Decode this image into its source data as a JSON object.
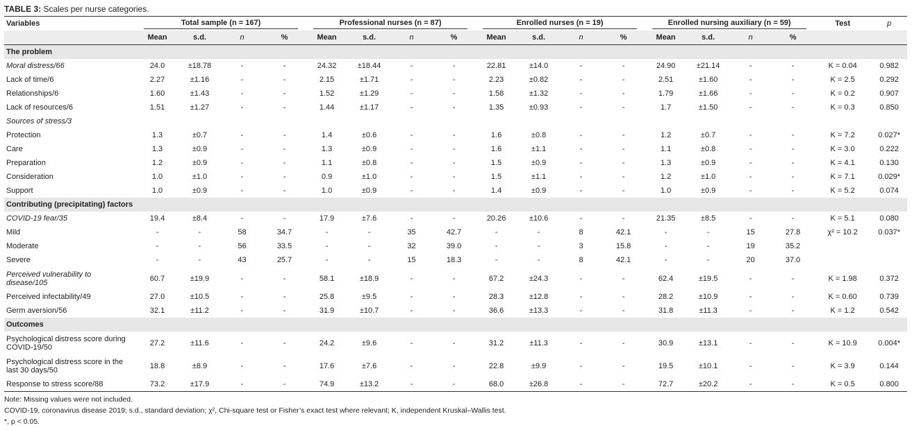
{
  "title": {
    "label": "TABLE 3:",
    "text": "Scales per nurse categories."
  },
  "header": {
    "variables": "Variables",
    "groups": [
      "Total sample (n = 167)",
      "Professional nurses (n = 87)",
      "Enrolled nurses (n = 19)",
      "Enrolled nursing auxiliary (n = 59)"
    ],
    "test": "Test",
    "p": "p",
    "subheaders": [
      "Mean",
      "s.d.",
      "n",
      "%"
    ]
  },
  "sections": [
    {
      "title": "The problem",
      "rows": [
        {
          "label": "Moral distress/66",
          "italic": true,
          "cells": [
            "24.0",
            "±18.78",
            "-",
            "-",
            "24.32",
            "±18.44",
            "-",
            "-",
            "22.81",
            "±14.0",
            "-",
            "-",
            "24.90",
            "±21.14",
            "-",
            "-"
          ],
          "test": "K = 0.04",
          "p": "0.982"
        },
        {
          "label": "Lack of time/6",
          "cells": [
            "2.27",
            "±1.16",
            "-",
            "-",
            "2.15",
            "±1.71",
            "-",
            "-",
            "2.23",
            "±0.82",
            "-",
            "-",
            "2.51",
            "±1.60",
            "-",
            "-"
          ],
          "test": "K = 2.5",
          "p": "0.292"
        },
        {
          "label": "Relationships/6",
          "cells": [
            "1.60",
            "±1.43",
            "-",
            "-",
            "1.52",
            "±1.29",
            "-",
            "-",
            "1.58",
            "±1.32",
            "-",
            "-",
            "1.79",
            "±1.66",
            "-",
            "-"
          ],
          "test": "K = 0.2",
          "p": "0.907"
        },
        {
          "label": "Lack of resources/6",
          "cells": [
            "1.51",
            "±1.27",
            "-",
            "-",
            "1.44",
            "±1.17",
            "-",
            "-",
            "1.35",
            "±0.93",
            "-",
            "-",
            "1.7",
            "±1.50",
            "-",
            "-"
          ],
          "test": "K = 0.3",
          "p": "0.850"
        },
        {
          "label": "Sources of stress/3",
          "italic": true
        },
        {
          "label": "Protection",
          "cells": [
            "1.3",
            "±0.7",
            "-",
            "-",
            "1.4",
            "±0.6",
            "-",
            "-",
            "1.6",
            "±0.8",
            "-",
            "-",
            "1.2",
            "±0.7",
            "-",
            "-"
          ],
          "test": "K = 7.2",
          "p": "0.027*"
        },
        {
          "label": "Care",
          "cells": [
            "1.3",
            "±0.9",
            "-",
            "-",
            "1.3",
            "±0.9",
            "-",
            "-",
            "1.6",
            "±1.1",
            "-",
            "-",
            "1.1",
            "±0.8",
            "-",
            "-"
          ],
          "test": "K = 3.0",
          "p": "0.222"
        },
        {
          "label": "Preparation",
          "cells": [
            "1.2",
            "±0.9",
            "-",
            "-",
            "1.1",
            "±0.8",
            "-",
            "-",
            "1.5",
            "±0.9",
            "-",
            "-",
            "1.3",
            "±0.9",
            "-",
            "-"
          ],
          "test": "K = 4.1",
          "p": "0.130"
        },
        {
          "label": "Consideration",
          "cells": [
            "1.0",
            "±1.0",
            "-",
            "-",
            "0.9",
            "±1.0",
            "-",
            "-",
            "1.5",
            "±1.1",
            "-",
            "-",
            "1.2",
            "±1.0",
            "-",
            "-"
          ],
          "test": "K = 7.1",
          "p": "0.029*"
        },
        {
          "label": "Support",
          "cells": [
            "1.0",
            "±0.9",
            "-",
            "-",
            "1.0",
            "±0.9",
            "-",
            "-",
            "1.4",
            "±0.9",
            "-",
            "-",
            "1.0",
            "±0.9",
            "-",
            "-"
          ],
          "test": "K = 5.2",
          "p": "0.074"
        }
      ]
    },
    {
      "title": "Contributing (precipitating) factors",
      "rows": [
        {
          "label": "COVID-19 fear/35",
          "italic": true,
          "cells": [
            "19.4",
            "±8.4",
            "-",
            "-",
            "17.9",
            "±7.6",
            "-",
            "-",
            "20.26",
            "±10.6",
            "-",
            "-",
            "21.35",
            "±8.5",
            "-",
            "-"
          ],
          "test": "K = 5.1",
          "p": "0.080"
        },
        {
          "label": "Mild",
          "cells": [
            "-",
            "-",
            "58",
            "34.7",
            "-",
            "-",
            "35",
            "42.7",
            "-",
            "-",
            "8",
            "42.1",
            "-",
            "-",
            "15",
            "27.8"
          ],
          "test": "χ² = 10.2",
          "p": "0.037*"
        },
        {
          "label": "Moderate",
          "cells": [
            "-",
            "-",
            "56",
            "33.5",
            "-",
            "-",
            "32",
            "39.0",
            "-",
            "-",
            "3",
            "15.8",
            "-",
            "-",
            "19",
            "35.2"
          ]
        },
        {
          "label": "Severe",
          "cells": [
            "-",
            "-",
            "43",
            "25.7",
            "-",
            "-",
            "15",
            "18.3",
            "-",
            "-",
            "8",
            "42.1",
            "-",
            "-",
            "20",
            "37.0"
          ]
        },
        {
          "label": "Perceived vulnerability to disease/105",
          "italic": true,
          "cells": [
            "60.7",
            "±19.9",
            "-",
            "-",
            "58.1",
            "±18.9",
            "-",
            "-",
            "67.2",
            "±24.3",
            "-",
            "-",
            "62.4",
            "±19.5",
            "-",
            "-"
          ],
          "test": "K = 1.98",
          "p": "0.372"
        },
        {
          "label": "Perceived infectability/49",
          "cells": [
            "27.0",
            "±10.5",
            "-",
            "-",
            "25.8",
            "±9.5",
            "-",
            "-",
            "28.3",
            "±12.8",
            "-",
            "-",
            "28.2",
            "±10.9",
            "-",
            "-"
          ],
          "test": "K = 0.60",
          "p": "0.739"
        },
        {
          "label": "Germ aversion/56",
          "cells": [
            "32.1",
            "±11.2",
            "-",
            "-",
            "31.9",
            "±10.7",
            "-",
            "-",
            "36.6",
            "±13.3",
            "-",
            "-",
            "31.8",
            "±11.3",
            "-",
            "-"
          ],
          "test": "K = 1.2",
          "p": "0.542"
        }
      ]
    },
    {
      "title": "Outcomes",
      "rows": [
        {
          "label": "Psychological distress score during COVID-19/50",
          "cells": [
            "27.2",
            "±11.6",
            "-",
            "-",
            "24.2",
            "±9.6",
            "-",
            "-",
            "31.2",
            "±11.3",
            "-",
            "-",
            "30.9",
            "±13.1",
            "-",
            "-"
          ],
          "test": "K = 10.9",
          "p": "0.004*"
        },
        {
          "label": "Psychological distress score in the last 30 days/50",
          "cells": [
            "18.8",
            "±8.9",
            "-",
            "-",
            "17.6",
            "±7.6",
            "-",
            "-",
            "22.8",
            "±9.9",
            "-",
            "-",
            "19.5",
            "±10.1",
            "-",
            "-"
          ],
          "test": "K = 3.9",
          "p": "0.144"
        },
        {
          "label": "Response to stress score/88",
          "cells": [
            "73.2",
            "±17.9",
            "-",
            "-",
            "74.9",
            "±13.2",
            "-",
            "-",
            "68.0",
            "±26.8",
            "-",
            "-",
            "72.7",
            "±20.2",
            "-",
            "-"
          ],
          "test": "K = 0.5",
          "p": "0.800"
        }
      ]
    }
  ],
  "notes": [
    "Note: Missing values were not included.",
    "COVID-19, coronavirus disease 2019; s.d., standard deviation; χ², Chi-square test or Fisher’s exact test where relevant; K, independent Kruskal–Wallis test.",
    "*, p < 0.05."
  ]
}
